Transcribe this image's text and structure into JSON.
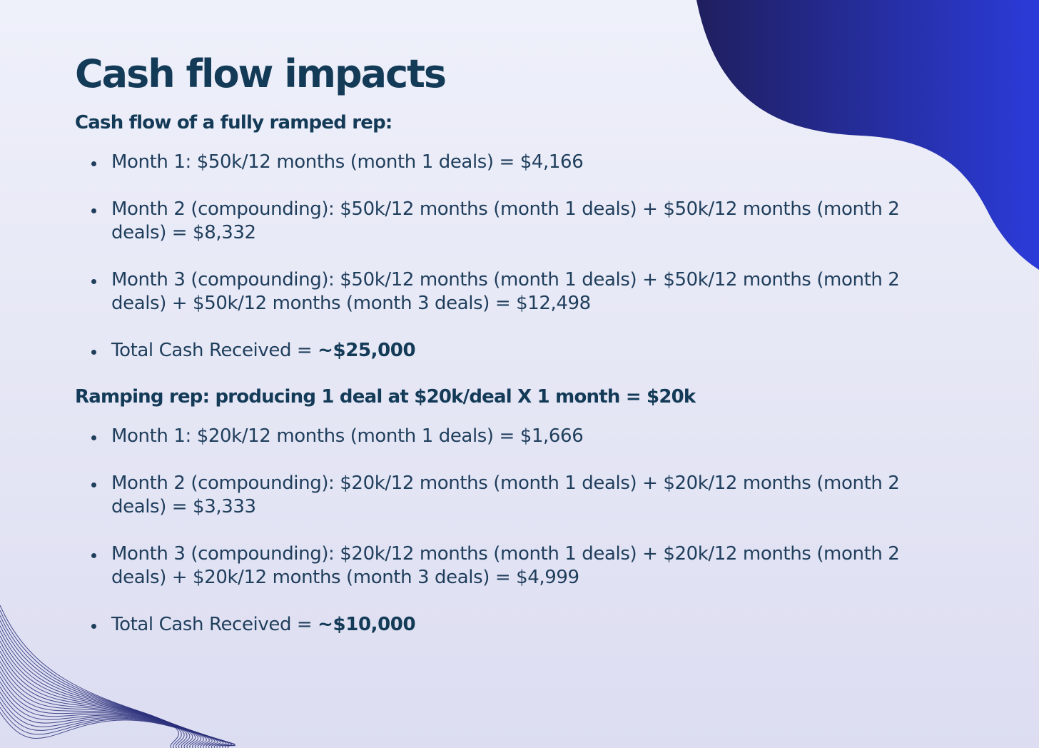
{
  "title": "Cash flow impacts",
  "colors": {
    "text": "#133a57",
    "accent_dark": "#1f1f5e",
    "accent_bright": "#2b3bd9",
    "background": "#e6e7f5",
    "wave_lines": "#2a2f7a"
  },
  "decorations": [
    "blue-blob-top-right",
    "wave-lines-bottom-left"
  ],
  "sections": [
    {
      "heading": "Cash flow of a fully ramped rep:",
      "items": [
        {
          "text": "Month 1: $50k/12 months (month 1 deals) = $4,166"
        },
        {
          "text": "Month 2 (compounding): $50k/12 months (month 1 deals) + $50k/12 months (month 2 deals) = $8,332"
        },
        {
          "text": "Month 3 (compounding): $50k/12 months (month 1 deals) + $50k/12 months (month 2 deals) + $50k/12 months (month 3 deals) = $12,498"
        }
      ],
      "total": {
        "label": "Total Cash Received = ",
        "value": "~$25,000"
      }
    },
    {
      "heading": "Ramping rep: producing 1 deal at $20k/deal X 1 month = $20k",
      "items": [
        {
          "text": "Month 1: $20k/12 months (month 1 deals) = $1,666"
        },
        {
          "text": "Month 2 (compounding): $20k/12 months (month 1 deals) + $20k/12 months (month 2 deals) = $3,333"
        },
        {
          "text": "Month 3 (compounding): $20k/12 months (month 1 deals) + $20k/12 months (month 2 deals) + $20k/12 months (month 3 deals) = $4,999"
        }
      ],
      "total": {
        "label": "Total Cash Received = ",
        "value": "~$10,000"
      }
    }
  ]
}
